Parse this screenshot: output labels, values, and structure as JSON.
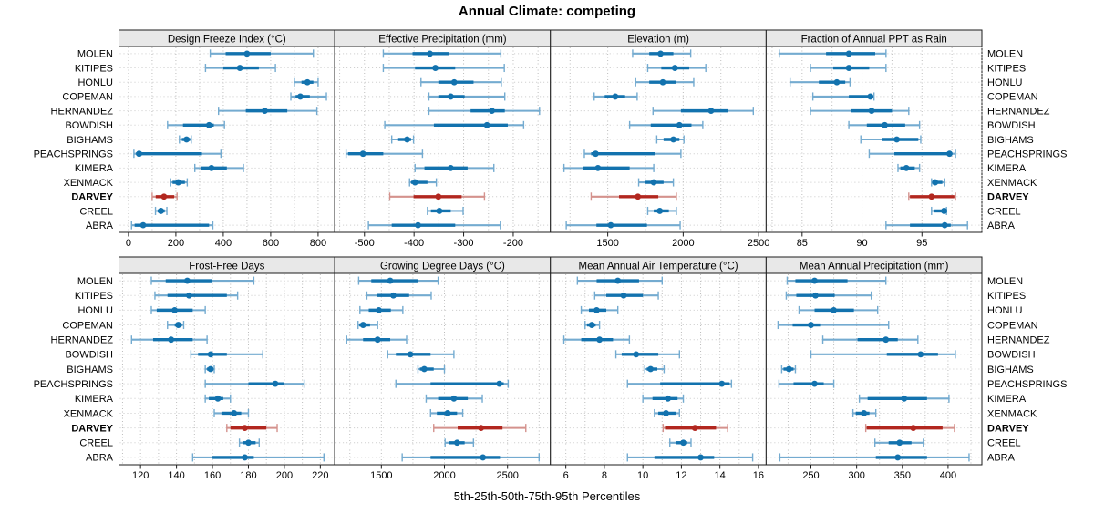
{
  "chart_data": {
    "type": "dotplot-intervals",
    "title": "Annual Climate: competing",
    "xlabel": "5th-25th-50th-75th-95th Percentiles",
    "percentile_levels": [
      "5th",
      "25th",
      "50th",
      "75th",
      "95th"
    ],
    "stations": [
      "MOLEN",
      "KITIPES",
      "HONLU",
      "COPEMAN",
      "HERNANDEZ",
      "BOWDISH",
      "BIGHAMS",
      "PEACHSPRINGS",
      "KIMERA",
      "XENMACK",
      "DARVEY",
      "CREEL",
      "ABRA"
    ],
    "highlight_station": "DARVEY",
    "legend_position": "none",
    "grid": "dotted",
    "colors": {
      "series": "#1272ae",
      "series_light": "#74abd0",
      "highlight": "#b2271f",
      "highlight_light": "#d4928d",
      "strip_bg": "#e8e8e8",
      "panel_border": "#1c1c1c",
      "gridline": "#bcbcbc",
      "row_line": "#c9c9c9",
      "text": "#000000"
    },
    "panels": [
      {
        "title": "Design Freeze Index (°C)",
        "row": 0,
        "col": 0,
        "xlim": [
          -40,
          870
        ],
        "ticks": [
          0,
          200,
          400,
          600,
          800
        ],
        "grid_step": 100,
        "values": [
          [
            345,
            410,
            500,
            600,
            780
          ],
          [
            325,
            400,
            470,
            550,
            620
          ],
          [
            700,
            730,
            755,
            780,
            800
          ],
          [
            685,
            705,
            725,
            765,
            835
          ],
          [
            380,
            495,
            575,
            670,
            795
          ],
          [
            165,
            230,
            340,
            360,
            405
          ],
          [
            215,
            225,
            245,
            260,
            265
          ],
          [
            23,
            32,
            45,
            310,
            390
          ],
          [
            280,
            305,
            350,
            415,
            485
          ],
          [
            178,
            186,
            210,
            238,
            248
          ],
          [
            100,
            115,
            150,
            193,
            205
          ],
          [
            114,
            123,
            137,
            153,
            162
          ],
          [
            13,
            26,
            62,
            340,
            356
          ]
        ]
      },
      {
        "title": "Effective Precipitation (mm)",
        "row": 0,
        "col": 1,
        "xlim": [
          -560,
          -125
        ],
        "ticks": [
          -500,
          -400,
          -300,
          -200
        ],
        "grid_step": 50,
        "values": [
          [
            -462,
            -403,
            -368,
            -329,
            -225
          ],
          [
            -462,
            -398,
            -357,
            -317,
            -218
          ],
          [
            -386,
            -351,
            -319,
            -280,
            -224
          ],
          [
            -370,
            -351,
            -326,
            -298,
            -217
          ],
          [
            -370,
            -286,
            -243,
            -217,
            -147
          ],
          [
            -459,
            -360,
            -253,
            -211,
            -179
          ],
          [
            -445,
            -432,
            -414,
            -406,
            -401
          ],
          [
            -537,
            -533,
            -503,
            -462,
            -383
          ],
          [
            -398,
            -379,
            -326,
            -292,
            -239
          ],
          [
            -409,
            -406,
            -398,
            -373,
            -355
          ],
          [
            -449,
            -401,
            -351,
            -304,
            -258
          ],
          [
            -373,
            -366,
            -349,
            -326,
            -301
          ],
          [
            -492,
            -445,
            -392,
            -317,
            -226
          ]
        ]
      },
      {
        "title": "Elevation (m)",
        "row": 0,
        "col": 2,
        "xlim": [
          1120,
          2550
        ],
        "ticks": [
          1500,
          2000,
          2500
        ],
        "grid_step": 250,
        "values": [
          [
            1665,
            1775,
            1850,
            1935,
            2050
          ],
          [
            1765,
            1855,
            1945,
            2040,
            2150
          ],
          [
            1685,
            1775,
            1865,
            1955,
            2070
          ],
          [
            1410,
            1480,
            1550,
            1615,
            1695
          ],
          [
            1800,
            1985,
            2185,
            2300,
            2465
          ],
          [
            1645,
            1785,
            1975,
            2055,
            2130
          ],
          [
            1825,
            1870,
            1935,
            1975,
            2005
          ],
          [
            1345,
            1390,
            1420,
            1815,
            1985
          ],
          [
            1210,
            1335,
            1435,
            1645,
            1805
          ],
          [
            1705,
            1750,
            1805,
            1870,
            1935
          ],
          [
            1390,
            1575,
            1700,
            1835,
            1955
          ],
          [
            1765,
            1805,
            1845,
            1905,
            1955
          ],
          [
            1225,
            1425,
            1520,
            1760,
            1980
          ]
        ]
      },
      {
        "title": "Fraction of Annual PPT as Rain",
        "row": 0,
        "col": 3,
        "xlim": [
          82,
          100
        ],
        "ticks": [
          85,
          90,
          95
        ],
        "grid_step": 2.5,
        "values": [
          [
            83.1,
            87.0,
            88.9,
            91.1,
            92.0
          ],
          [
            85.7,
            87.6,
            88.9,
            90.6,
            92.0
          ],
          [
            84.0,
            86.4,
            87.9,
            88.6,
            89.0
          ],
          [
            85.9,
            88.9,
            90.7,
            90.9,
            91.0
          ],
          [
            85.7,
            89.1,
            90.8,
            92.5,
            93.9
          ],
          [
            88.9,
            90.4,
            91.9,
            93.6,
            94.8
          ],
          [
            89.9,
            91.7,
            92.9,
            94.7,
            94.9
          ],
          [
            90.6,
            92.7,
            97.3,
            97.5,
            97.8
          ],
          [
            93.0,
            93.2,
            93.7,
            94.4,
            94.8
          ],
          [
            95.8,
            95.9,
            96.1,
            96.7,
            96.9
          ],
          [
            93.9,
            94.0,
            95.8,
            97.7,
            97.8
          ],
          [
            95.8,
            96.0,
            96.85,
            97.0,
            97.05
          ],
          [
            92.0,
            94.0,
            96.9,
            97.4,
            98.8
          ]
        ]
      },
      {
        "title": "Frost-Free Days",
        "row": 1,
        "col": 0,
        "xlim": [
          108,
          228
        ],
        "ticks": [
          120,
          140,
          160,
          180,
          200,
          220
        ],
        "grid_step": 10,
        "values": [
          [
            126,
            134,
            146,
            160,
            183
          ],
          [
            128,
            135,
            147,
            168,
            174
          ],
          [
            126,
            129,
            139,
            149,
            156
          ],
          [
            135,
            139,
            141,
            143,
            144
          ],
          [
            115,
            127,
            137,
            149,
            157
          ],
          [
            148,
            152,
            159,
            168,
            188
          ],
          [
            156,
            157,
            159,
            160,
            161
          ],
          [
            156,
            180,
            195,
            200,
            211
          ],
          [
            156,
            158,
            163,
            166,
            170
          ],
          [
            161,
            165,
            172,
            176,
            180
          ],
          [
            168,
            170,
            178,
            190,
            196
          ],
          [
            175,
            177,
            180,
            184,
            186
          ],
          [
            149,
            160,
            178,
            183,
            222
          ]
        ]
      },
      {
        "title": "Growing Degree Days (°C)",
        "row": 1,
        "col": 1,
        "xlim": [
          1130,
          2840
        ],
        "ticks": [
          1500,
          2000,
          2500
        ],
        "grid_step": 250,
        "values": [
          [
            1320,
            1420,
            1570,
            1790,
            1950
          ],
          [
            1385,
            1465,
            1595,
            1720,
            1895
          ],
          [
            1330,
            1400,
            1480,
            1575,
            1670
          ],
          [
            1315,
            1325,
            1355,
            1410,
            1470
          ],
          [
            1225,
            1355,
            1470,
            1570,
            1700
          ],
          [
            1550,
            1615,
            1730,
            1890,
            2075
          ],
          [
            1790,
            1805,
            1840,
            1915,
            2000
          ],
          [
            1615,
            1890,
            2435,
            2470,
            2505
          ],
          [
            1855,
            1950,
            2075,
            2185,
            2300
          ],
          [
            1890,
            1940,
            2025,
            2100,
            2145
          ],
          [
            1915,
            2105,
            2290,
            2460,
            2645
          ],
          [
            2005,
            2035,
            2100,
            2160,
            2230
          ],
          [
            1665,
            1890,
            2305,
            2440,
            2750
          ]
        ]
      },
      {
        "title": "Mean Annual Air Temperature (°C)",
        "row": 1,
        "col": 2,
        "xlim": [
          5.2,
          16.4
        ],
        "ticks": [
          6,
          8,
          10,
          12,
          14,
          16
        ],
        "grid_step": 1,
        "values": [
          [
            6.6,
            7.6,
            8.7,
            9.8,
            11.0
          ],
          [
            7.5,
            8.1,
            9.0,
            10.0,
            10.8
          ],
          [
            6.8,
            7.2,
            7.6,
            8.1,
            8.7
          ],
          [
            7.0,
            7.1,
            7.35,
            7.55,
            7.75
          ],
          [
            5.9,
            6.8,
            7.75,
            8.45,
            9.3
          ],
          [
            8.6,
            8.9,
            9.65,
            10.8,
            11.9
          ],
          [
            10.1,
            10.2,
            10.4,
            10.75,
            11.1
          ],
          [
            9.2,
            10.9,
            14.1,
            14.5,
            14.6
          ],
          [
            10.0,
            10.5,
            11.3,
            11.8,
            12.1
          ],
          [
            10.6,
            10.8,
            11.2,
            11.7,
            11.9
          ],
          [
            11.05,
            11.15,
            12.7,
            13.8,
            14.4
          ],
          [
            11.4,
            11.7,
            12.1,
            12.3,
            12.5
          ],
          [
            9.2,
            10.6,
            13.0,
            13.7,
            15.7
          ]
        ]
      },
      {
        "title": "Mean Annual Precipitation (mm)",
        "row": 1,
        "col": 3,
        "xlim": [
          201,
          437
        ],
        "ticks": [
          250,
          300,
          350,
          400
        ],
        "grid_step": 25,
        "values": [
          [
            224,
            233,
            254,
            290,
            332
          ],
          [
            223,
            234,
            255,
            276,
            316
          ],
          [
            237,
            254,
            275,
            297,
            323
          ],
          [
            214,
            230,
            250,
            260,
            335
          ],
          [
            263,
            301,
            332,
            345,
            367
          ],
          [
            250,
            333,
            370,
            389,
            408
          ],
          [
            218,
            220,
            226,
            231,
            233
          ],
          [
            215,
            231,
            254,
            264,
            275
          ],
          [
            303,
            312,
            352,
            377,
            401
          ],
          [
            296,
            299,
            308,
            314,
            321
          ],
          [
            310,
            311,
            362,
            394,
            407
          ],
          [
            320,
            335,
            347,
            360,
            373
          ],
          [
            216,
            321,
            345,
            377,
            423
          ]
        ]
      }
    ]
  }
}
